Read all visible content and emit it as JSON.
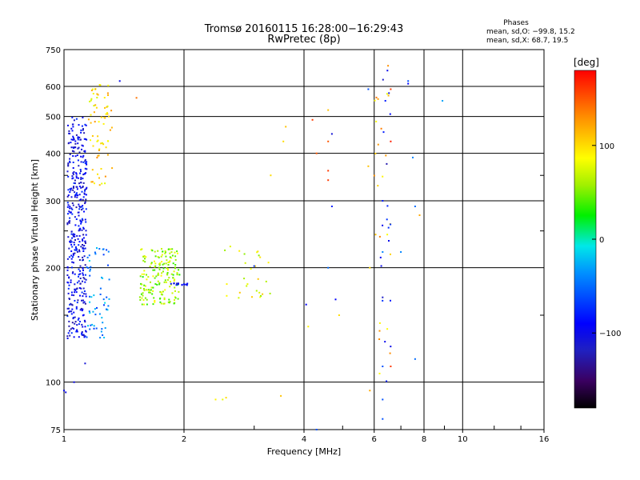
{
  "chart_data": {
    "type": "scatter",
    "title": "Tromsø 20160115 16:28:00−16:29:43",
    "subtitle": "RwPretec (8p)",
    "xlabel": "Frequency [MHz]",
    "ylabel": "Stationary phase Virtual Height [km]",
    "xscale": "log",
    "yscale": "log",
    "xlim": [
      1,
      16
    ],
    "ylim": [
      75,
      750
    ],
    "xticks": [
      "1",
      "2",
      "4",
      "6",
      "8",
      "10",
      "16"
    ],
    "yticks": [
      "75",
      "100",
      "200",
      "300",
      "400",
      "500",
      "600",
      "750"
    ],
    "grid": true,
    "phase_stats": {
      "heading": "Phases",
      "line_o": "mean, sd,O: −99.8, 15.2",
      "line_x": "mean, sd,X:  68.7, 19.5"
    },
    "colorbar": {
      "unit": "[deg]",
      "range": [
        -180,
        180
      ],
      "ticks": [
        "100",
        "0",
        "−100"
      ],
      "tick_values": [
        100,
        0,
        -100
      ]
    },
    "clusters": [
      {
        "f": [
          1.02,
          1.14
        ],
        "h": [
          130,
          500
        ],
        "phase": -100,
        "n": 420
      },
      {
        "f": [
          1.15,
          1.32
        ],
        "h": [
          330,
          610
        ],
        "phase": 100,
        "n": 70
      },
      {
        "f": [
          1.14,
          1.3
        ],
        "h": [
          130,
          230
        ],
        "phase": -40,
        "n": 60
      },
      {
        "f": [
          1.55,
          1.95
        ],
        "h": [
          160,
          225
        ],
        "phase": 60,
        "n": 180
      },
      {
        "f": [
          1.85,
          2.05
        ],
        "h": [
          180,
          182
        ],
        "phase": -100,
        "n": 14
      },
      {
        "f": [
          2.5,
          3.3
        ],
        "h": [
          165,
          230
        ],
        "phase": 80,
        "n": 28
      },
      {
        "f": [
          6.0,
          6.6
        ],
        "h": [
          80,
          600
        ],
        "phase": 110,
        "n": 24
      },
      {
        "f": [
          6.2,
          6.6
        ],
        "h": [
          100,
          680
        ],
        "phase": -100,
        "n": 20
      }
    ],
    "points": [
      {
        "f": 1.0,
        "h": 95,
        "phase": -100
      },
      {
        "f": 1.01,
        "h": 94,
        "phase": -100
      },
      {
        "f": 1.06,
        "h": 100,
        "phase": -100
      },
      {
        "f": 1.13,
        "h": 112,
        "phase": -110
      },
      {
        "f": 1.38,
        "h": 620,
        "phase": -100
      },
      {
        "f": 1.52,
        "h": 560,
        "phase": 140
      },
      {
        "f": 2.4,
        "h": 90,
        "phase": 90
      },
      {
        "f": 2.5,
        "h": 90,
        "phase": 80
      },
      {
        "f": 2.55,
        "h": 91,
        "phase": 100
      },
      {
        "f": 3.0,
        "h": 202,
        "phase": -70
      },
      {
        "f": 3.3,
        "h": 350,
        "phase": 100
      },
      {
        "f": 3.5,
        "h": 92,
        "phase": 110
      },
      {
        "f": 3.55,
        "h": 430,
        "phase": 100
      },
      {
        "f": 3.6,
        "h": 470,
        "phase": 110
      },
      {
        "f": 4.05,
        "h": 160,
        "phase": -90
      },
      {
        "f": 4.1,
        "h": 140,
        "phase": 90
      },
      {
        "f": 4.2,
        "h": 490,
        "phase": 160
      },
      {
        "f": 4.3,
        "h": 400,
        "phase": 150
      },
      {
        "f": 4.6,
        "h": 520,
        "phase": 110
      },
      {
        "f": 4.6,
        "h": 430,
        "phase": 150
      },
      {
        "f": 4.6,
        "h": 360,
        "phase": 160
      },
      {
        "f": 4.6,
        "h": 340,
        "phase": 160
      },
      {
        "f": 4.7,
        "h": 450,
        "phase": -110
      },
      {
        "f": 4.7,
        "h": 290,
        "phase": -80
      },
      {
        "f": 4.6,
        "h": 200,
        "phase": -50
      },
      {
        "f": 4.8,
        "h": 165,
        "phase": -90
      },
      {
        "f": 4.9,
        "h": 150,
        "phase": 100
      },
      {
        "f": 4.3,
        "h": 75,
        "phase": -60
      },
      {
        "f": 5.8,
        "h": 590,
        "phase": -60
      },
      {
        "f": 5.8,
        "h": 370,
        "phase": 110
      },
      {
        "f": 5.85,
        "h": 200,
        "phase": 100
      },
      {
        "f": 5.85,
        "h": 95,
        "phase": 120
      },
      {
        "f": 6.3,
        "h": 80,
        "phase": -60
      },
      {
        "f": 6.3,
        "h": 90,
        "phase": -60
      },
      {
        "f": 6.3,
        "h": 110,
        "phase": -60
      },
      {
        "f": 6.3,
        "h": 220,
        "phase": -40
      },
      {
        "f": 6.3,
        "h": 300,
        "phase": -80
      },
      {
        "f": 6.4,
        "h": 550,
        "phase": -80
      },
      {
        "f": 6.5,
        "h": 680,
        "phase": 130
      },
      {
        "f": 6.6,
        "h": 590,
        "phase": 160
      },
      {
        "f": 6.6,
        "h": 430,
        "phase": 170
      },
      {
        "f": 6.6,
        "h": 110,
        "phase": 160
      },
      {
        "f": 7.0,
        "h": 220,
        "phase": -40
      },
      {
        "f": 7.3,
        "h": 620,
        "phase": -60
      },
      {
        "f": 7.3,
        "h": 610,
        "phase": -90
      },
      {
        "f": 7.5,
        "h": 390,
        "phase": -40
      },
      {
        "f": 7.6,
        "h": 290,
        "phase": -50
      },
      {
        "f": 7.6,
        "h": 115,
        "phase": -50
      },
      {
        "f": 7.8,
        "h": 275,
        "phase": 120
      },
      {
        "f": 8.9,
        "h": 550,
        "phase": -30
      }
    ]
  }
}
